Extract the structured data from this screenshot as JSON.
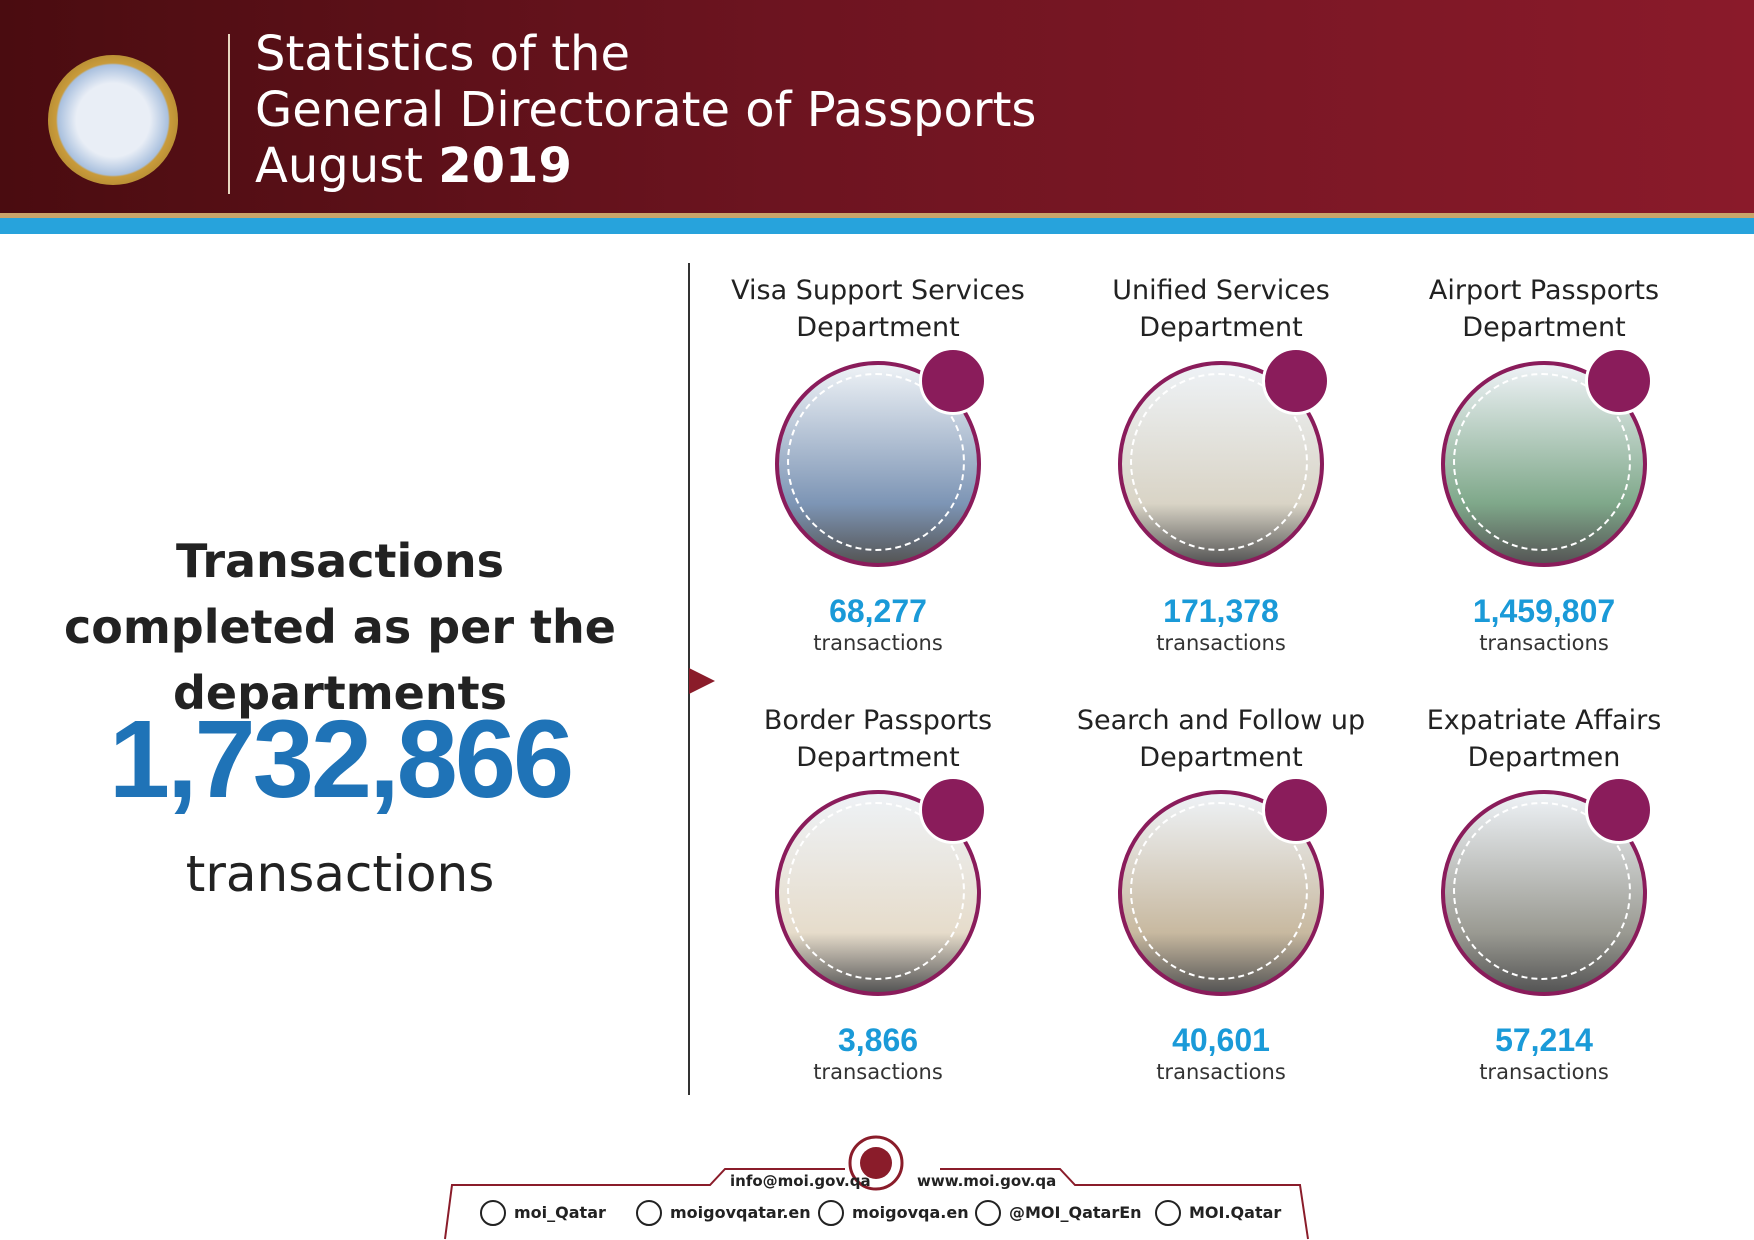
{
  "header": {
    "title_lines": [
      "Statistics of the",
      "General Directorate of Passports"
    ],
    "month": "August",
    "year": "2019"
  },
  "summary": {
    "heading": "Transactions completed as per the departments",
    "total": "1,732,866",
    "unit": "transactions"
  },
  "departments": [
    {
      "name": "Visa Support Services Department",
      "value": "68,277",
      "unit": "transactions"
    },
    {
      "name": "Unified Services Department",
      "value": "171,378",
      "unit": "transactions"
    },
    {
      "name": "Airport Passports Department",
      "value": "1,459,807",
      "unit": "transactions"
    },
    {
      "name": "Border Passports Department",
      "value": "3,866",
      "unit": "transactions"
    },
    {
      "name": "Search and Follow up Department",
      "value": "40,601",
      "unit": "transactions"
    },
    {
      "name": "Expatriate Affairs Departmen",
      "value": "57,214",
      "unit": "transactions"
    }
  ],
  "footer": {
    "email": "info@moi.gov.qa",
    "website": "www.moi.gov.qa",
    "socials": [
      "moi_Qatar",
      "moigovqatar.en",
      "moigovqa.en",
      "@MOI_QatarEn",
      "MOI.Qatar"
    ]
  }
}
